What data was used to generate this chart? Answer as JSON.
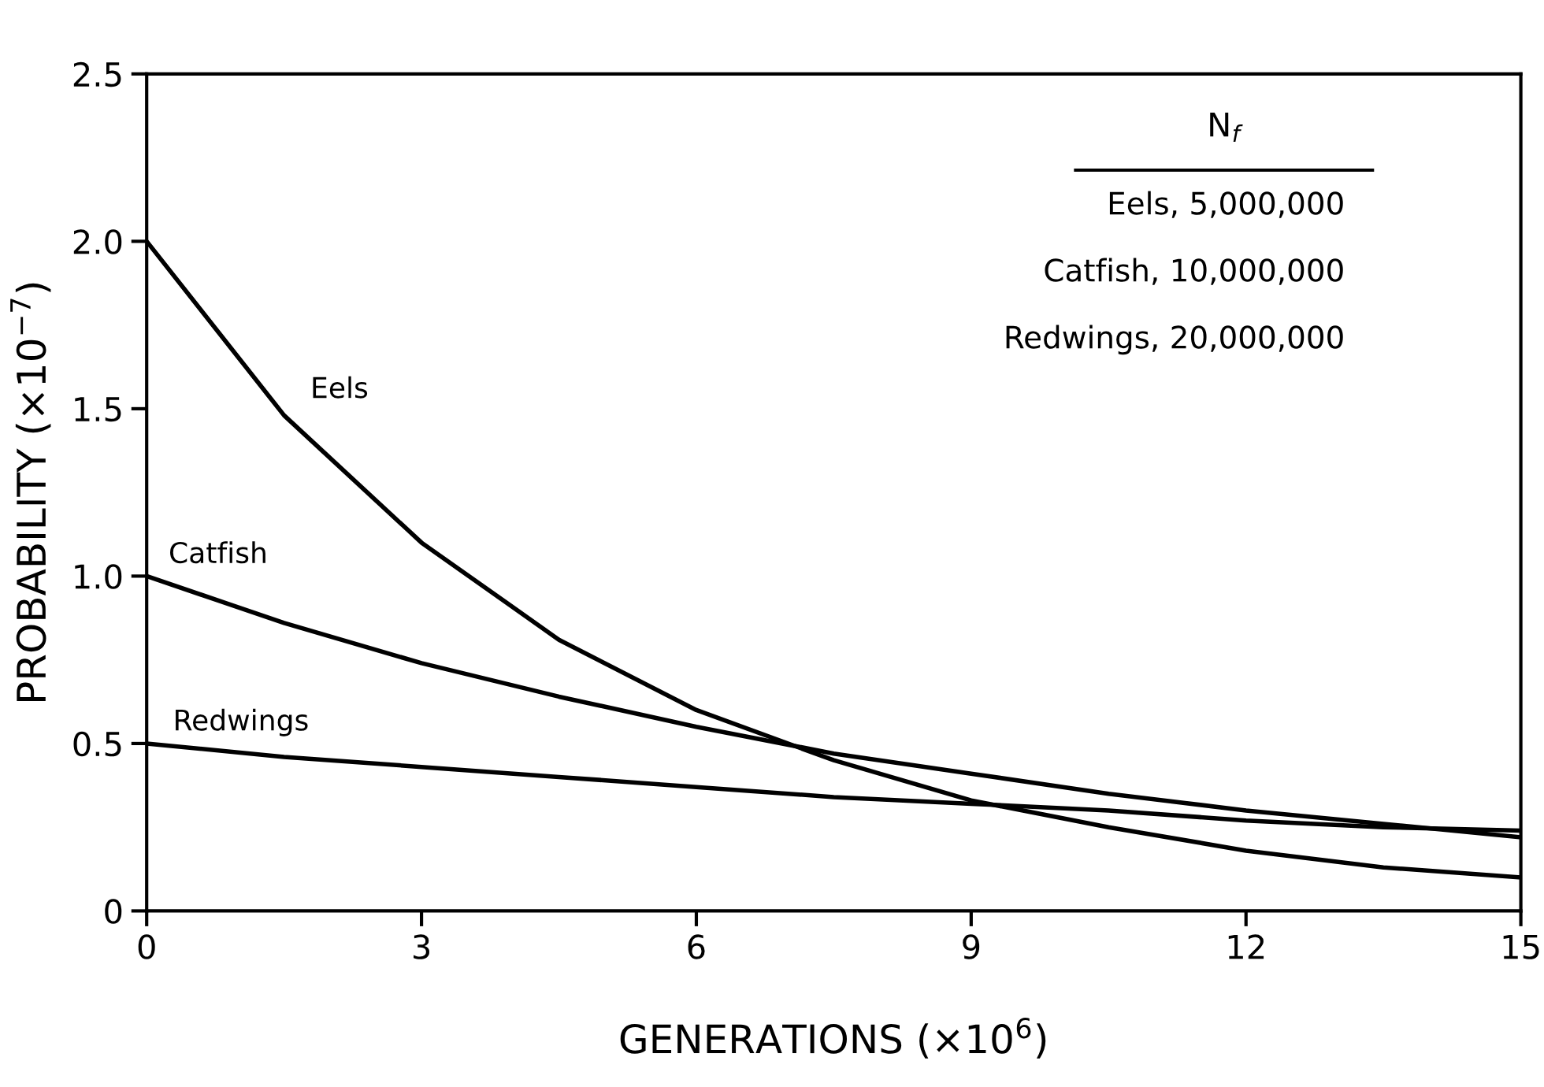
{
  "chart_data": {
    "type": "line",
    "xlabel": "GENERATIONS (×10$^{6}$)",
    "ylabel": "PROBABILITY (×10$^{−7}$)",
    "x": [
      0,
      1.5,
      3,
      4.5,
      6,
      7.5,
      9,
      10.5,
      12,
      13.5,
      15
    ],
    "series": [
      {
        "name": "Eels",
        "color": "#000000",
        "values": [
          2.0,
          1.48,
          1.1,
          0.81,
          0.6,
          0.45,
          0.33,
          0.25,
          0.18,
          0.13,
          0.1
        ]
      },
      {
        "name": "Catfish",
        "color": "#000000",
        "values": [
          1.0,
          0.86,
          0.74,
          0.64,
          0.55,
          0.47,
          0.41,
          0.35,
          0.3,
          0.26,
          0.22
        ]
      },
      {
        "name": "Redwings",
        "color": "#000000",
        "values": [
          0.5,
          0.46,
          0.43,
          0.4,
          0.37,
          0.34,
          0.32,
          0.3,
          0.27,
          0.25,
          0.24
        ]
      }
    ],
    "xlim": [
      0,
      15
    ],
    "ylim": [
      0,
      2.5
    ],
    "xticks": [
      {
        "value": 0,
        "label": "0"
      },
      3,
      6,
      9,
      12,
      15
    ],
    "yticks": [
      {
        "value": 0,
        "label": "0"
      },
      0.5,
      {
        "value": 1,
        "label": "1.0"
      },
      1.5,
      {
        "value": 2,
        "label": "2.0"
      },
      2.5
    ],
    "annotations": [
      "N$_{f}$",
      "Eels, 5,000,000",
      "Catfish, 10,000,000",
      "Redwings, 20,000,000"
    ],
    "grid": false,
    "legend": false,
    "marker": "none",
    "line_style": "solid"
  }
}
